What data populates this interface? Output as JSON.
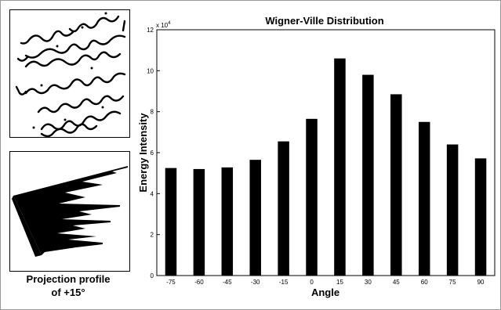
{
  "left_panel": {
    "caption_line1": "Projection profile",
    "caption_line2": "of  +15°"
  },
  "chart_data": {
    "type": "bar",
    "title": "Wigner-Ville Distribution",
    "xlabel": "Angle",
    "ylabel": "Energy Intensity",
    "exponent_label": "x 10",
    "exponent_power": "4",
    "categories": [
      "-75",
      "-60",
      "-45",
      "-30",
      "-15",
      "0",
      "15",
      "30",
      "45",
      "60",
      "75",
      "90"
    ],
    "values": [
      5.25,
      5.2,
      5.28,
      5.65,
      6.55,
      7.65,
      10.6,
      9.8,
      8.85,
      7.5,
      6.4,
      5.72
    ],
    "ylim": [
      0,
      12
    ],
    "yticks": [
      0,
      2,
      4,
      6,
      8,
      10,
      12
    ],
    "bar_color": "#000000",
    "grid": false,
    "legend": "none"
  }
}
